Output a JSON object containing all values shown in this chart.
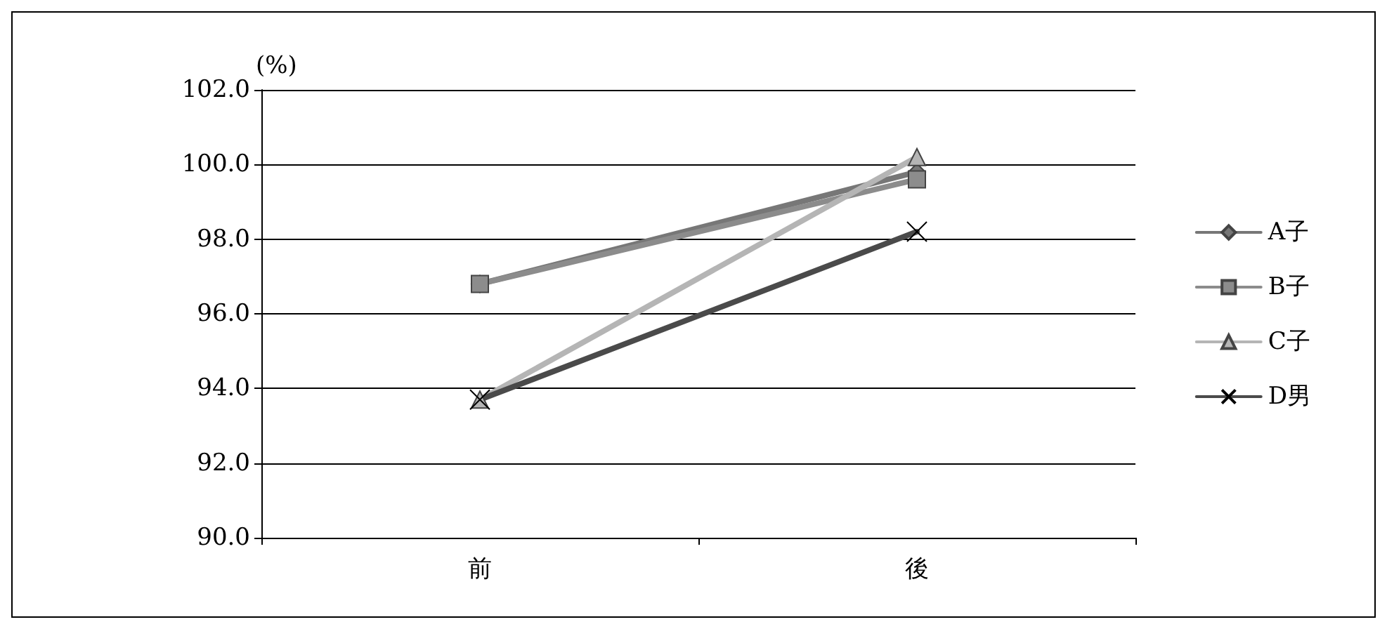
{
  "chart_data": {
    "type": "line",
    "ylabel": "(%)",
    "categories": [
      "前",
      "後"
    ],
    "series": [
      {
        "name": "A子",
        "color": "#777777",
        "marker": "diamond",
        "values": [
          96.8,
          99.8
        ]
      },
      {
        "name": "B子",
        "color": "#8c8c8c",
        "marker": "square",
        "values": [
          96.8,
          99.6
        ]
      },
      {
        "name": "C子",
        "color": "#b5b5b5",
        "marker": "triangle",
        "values": [
          93.7,
          100.2
        ]
      },
      {
        "name": "D男",
        "color": "#4a4a4a",
        "marker": "cross",
        "values": [
          93.7,
          98.2
        ]
      }
    ],
    "ylim": [
      90,
      102
    ],
    "yticks": [
      {
        "value": 90,
        "label": "90.0"
      },
      {
        "value": 92,
        "label": "92.0"
      },
      {
        "value": 94,
        "label": "94.0"
      },
      {
        "value": 96,
        "label": "96.0"
      },
      {
        "value": 98,
        "label": "98.0"
      },
      {
        "value": 100,
        "label": "100.0"
      },
      {
        "value": 102,
        "label": "102.0"
      }
    ],
    "grid": "y",
    "legend": "right"
  }
}
